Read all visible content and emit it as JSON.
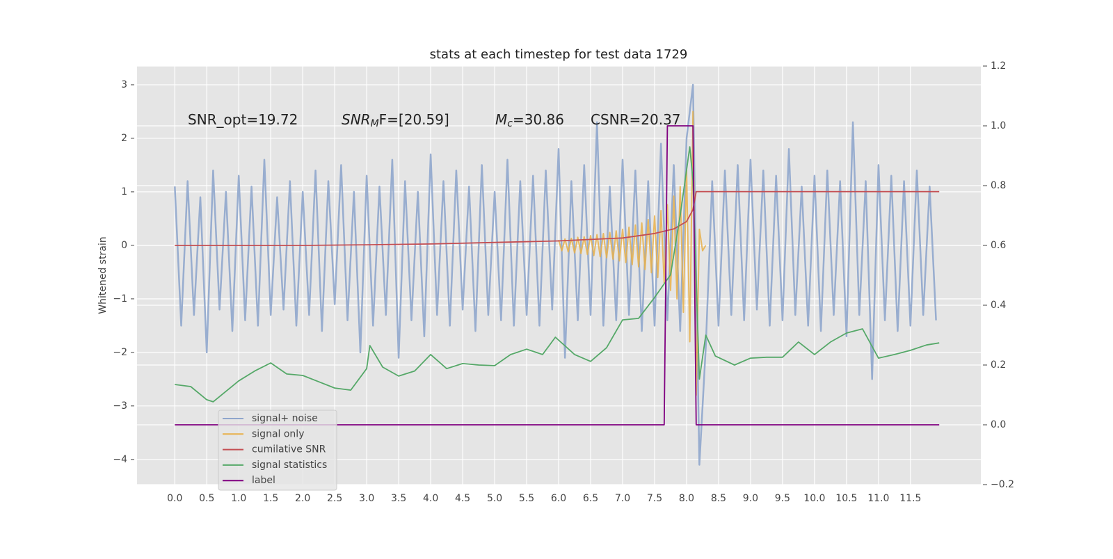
{
  "chart_data": {
    "type": "line",
    "title": "stats at each timestep for test data 1729",
    "ylabel": "Whitened strain",
    "annotations": [
      [
        "SNR_opt=19.72"
      ],
      [
        "SNR",
        "M",
        "F=[20.59]"
      ],
      [
        "M",
        "c",
        "=30.86"
      ],
      [
        "CSNR=20.37"
      ]
    ],
    "xlim": [
      -0.59,
      12.6
    ],
    "ylim": [
      -4.47,
      3.35
    ],
    "y2lim": [
      -0.2,
      1.2
    ],
    "xticks": [
      {
        "value": 0,
        "label": "0.0"
      },
      0.5,
      {
        "value": 1,
        "label": "1.0"
      },
      1.5,
      {
        "value": 2,
        "label": "2.0"
      },
      2.5,
      {
        "value": 3,
        "label": "3.0"
      },
      3.5,
      {
        "value": 4,
        "label": "4.0"
      },
      4.5,
      {
        "value": 5,
        "label": "5.0"
      },
      5.5,
      {
        "value": 6,
        "label": "6.0"
      },
      6.5,
      {
        "value": 7,
        "label": "7.0"
      },
      7.5,
      {
        "value": 8,
        "label": "8.0"
      },
      8.5,
      {
        "value": 9,
        "label": "9.0"
      },
      9.5,
      {
        "value": 10,
        "label": "10.0"
      },
      10.5,
      {
        "value": 11,
        "label": "11.0"
      },
      11.5
    ],
    "yticks": [
      {
        "value": -4,
        "label": "−4"
      },
      {
        "value": -3,
        "label": "−3"
      },
      {
        "value": -2,
        "label": "−2"
      },
      {
        "value": -1,
        "label": "−1"
      },
      0,
      1,
      2,
      3
    ],
    "y2ticks": [
      {
        "value": -0.2,
        "label": "−0.2"
      },
      {
        "value": 0,
        "label": "0.0"
      },
      0.2,
      0.4,
      0.6,
      0.8,
      {
        "value": 1,
        "label": "1.0"
      },
      1.2
    ],
    "grid": true,
    "series": [
      {
        "name": "signal+ noise",
        "color": "#8fa6cc",
        "x": [
          0,
          0.1,
          0.2,
          0.3,
          0.4,
          0.5,
          0.6,
          0.7,
          0.8,
          0.9,
          1,
          1.1,
          1.2,
          1.3,
          1.4,
          1.5,
          1.6,
          1.7,
          1.8,
          1.9,
          2,
          2.1,
          2.2,
          2.3,
          2.4,
          2.5,
          2.6,
          2.7,
          2.8,
          2.9,
          3,
          3.1,
          3.2,
          3.3,
          3.4,
          3.5,
          3.6,
          3.7,
          3.8,
          3.9,
          4,
          4.1,
          4.2,
          4.3,
          4.4,
          4.5,
          4.6,
          4.7,
          4.8,
          4.9,
          5,
          5.1,
          5.2,
          5.3,
          5.4,
          5.5,
          5.6,
          5.7,
          5.8,
          5.9,
          6,
          6.1,
          6.2,
          6.3,
          6.4,
          6.5,
          6.6,
          6.7,
          6.8,
          6.9,
          7,
          7.1,
          7.2,
          7.3,
          7.4,
          7.5,
          7.6,
          7.7,
          7.8,
          7.9,
          8,
          8.1,
          8.2,
          8.3,
          8.4,
          8.5,
          8.6,
          8.7,
          8.8,
          8.9,
          9,
          9.1,
          9.2,
          9.3,
          9.4,
          9.5,
          9.6,
          9.7,
          9.8,
          9.9,
          10,
          10.1,
          10.2,
          10.3,
          10.4,
          10.5,
          10.6,
          10.7,
          10.8,
          10.9,
          11,
          11.1,
          11.2,
          11.3,
          11.4,
          11.5,
          11.6,
          11.7,
          11.8,
          11.9
        ],
        "values": [
          1.1,
          -1.5,
          1.2,
          -1.3,
          0.9,
          -2.0,
          1.4,
          -1.2,
          1.0,
          -1.6,
          1.3,
          -1.4,
          1.1,
          -1.5,
          1.6,
          -1.3,
          0.9,
          -1.2,
          1.2,
          -1.5,
          1.0,
          -1.3,
          1.4,
          -1.6,
          1.2,
          -1.1,
          1.5,
          -1.4,
          1.0,
          -2.0,
          1.3,
          -1.5,
          1.1,
          -1.3,
          1.6,
          -2.1,
          1.2,
          -1.4,
          1.0,
          -1.7,
          1.7,
          -1.3,
          1.2,
          -1.5,
          1.4,
          -1.2,
          1.1,
          -1.6,
          1.5,
          -1.3,
          1.0,
          -1.4,
          1.6,
          -1.5,
          1.2,
          -1.3,
          1.3,
          -1.5,
          1.4,
          -1.2,
          1.8,
          -2.1,
          1.2,
          -1.4,
          1.5,
          -1.3,
          2.3,
          -1.5,
          1.1,
          -1.4,
          1.6,
          -1.3,
          1.4,
          -1.6,
          1.2,
          -1.5,
          1.9,
          -1.4,
          1.5,
          -1.6,
          2.0,
          3.0,
          -4.1,
          -1.9,
          1.2,
          -1.5,
          1.4,
          -1.3,
          1.5,
          -1.4,
          1.6,
          -1.2,
          1.4,
          -1.5,
          1.3,
          -1.4,
          1.8,
          -1.3,
          1.1,
          -1.5,
          1.3,
          -1.6,
          1.4,
          -1.3,
          1.2,
          -1.7,
          2.3,
          -1.3,
          1.2,
          -2.5,
          1.5,
          -1.4,
          1.3,
          -1.6,
          1.2,
          -1.5,
          1.4,
          -1.3,
          1.1,
          -1.4
        ]
      },
      {
        "name": "signal only",
        "color": "#e8b04a",
        "x": [
          6,
          6.05,
          6.1,
          6.15,
          6.2,
          6.25,
          6.3,
          6.35,
          6.4,
          6.45,
          6.5,
          6.55,
          6.6,
          6.65,
          6.7,
          6.75,
          6.8,
          6.85,
          6.9,
          6.95,
          7,
          7.05,
          7.1,
          7.15,
          7.2,
          7.25,
          7.3,
          7.35,
          7.4,
          7.45,
          7.5,
          7.55,
          7.6,
          7.65,
          7.7,
          7.75,
          7.8,
          7.85,
          7.9,
          7.95,
          8,
          8.05,
          8.1,
          8.15,
          8.2,
          8.25,
          8.3
        ],
        "values": [
          0.1,
          -0.1,
          0.12,
          -0.12,
          0.13,
          -0.14,
          0.15,
          -0.15,
          0.16,
          -0.17,
          0.18,
          -0.19,
          0.2,
          -0.21,
          0.22,
          -0.23,
          0.24,
          -0.26,
          0.27,
          -0.29,
          0.3,
          -0.32,
          0.34,
          -0.36,
          0.38,
          -0.4,
          0.42,
          -0.45,
          0.48,
          -0.51,
          0.55,
          -0.6,
          0.65,
          -0.7,
          0.76,
          -0.84,
          0.92,
          -1.0,
          1.1,
          -1.25,
          1.4,
          -1.8,
          2.5,
          -2.8,
          0.3,
          -0.1,
          0
        ]
      },
      {
        "name": "cumilative SNR",
        "color": "#c44e52",
        "axis": "y2",
        "x": [
          0,
          1,
          2,
          3,
          4,
          5,
          6,
          6.5,
          7,
          7.5,
          7.8,
          8,
          8.1,
          8.15,
          8.2,
          9,
          10,
          11,
          11.95
        ],
        "values": [
          0.6,
          0.6,
          0.6,
          0.602,
          0.605,
          0.61,
          0.615,
          0.62,
          0.625,
          0.64,
          0.655,
          0.68,
          0.72,
          0.78,
          0.78,
          0.78,
          0.78,
          0.78,
          0.78
        ]
      },
      {
        "name": "signal statistics",
        "color": "#55a868",
        "axis": "y2",
        "x": [
          0,
          0.25,
          0.5,
          0.6,
          1,
          1.25,
          1.5,
          1.75,
          2,
          2.25,
          2.5,
          2.75,
          3,
          3.05,
          3.25,
          3.5,
          3.75,
          4,
          4.25,
          4.5,
          4.75,
          5,
          5.25,
          5.5,
          5.75,
          5.95,
          6.25,
          6.5,
          6.75,
          7,
          7.25,
          7.5,
          7.75,
          7.9,
          8.05,
          8.1,
          8.2,
          8.3,
          8.45,
          8.75,
          9,
          9.25,
          9.5,
          9.75,
          10,
          10.25,
          10.5,
          10.75,
          11,
          11.25,
          11.5,
          11.75,
          11.95
        ],
        "values": [
          0.135,
          0.128,
          0.084,
          0.077,
          0.147,
          0.18,
          0.207,
          0.17,
          0.165,
          0.144,
          0.123,
          0.116,
          0.188,
          0.265,
          0.193,
          0.163,
          0.18,
          0.235,
          0.188,
          0.205,
          0.2,
          0.198,
          0.235,
          0.253,
          0.235,
          0.293,
          0.235,
          0.212,
          0.258,
          0.351,
          0.356,
          0.426,
          0.502,
          0.7,
          0.93,
          0.816,
          0.153,
          0.3,
          0.23,
          0.2,
          0.223,
          0.226,
          0.226,
          0.277,
          0.235,
          0.277,
          0.307,
          0.321,
          0.223,
          0.235,
          0.249,
          0.267,
          0.274
        ]
      },
      {
        "name": "label",
        "color": "#800080",
        "axis": "y2",
        "x": [
          0,
          7.65,
          7.7,
          8.1,
          8.15,
          11.95
        ],
        "values": [
          0,
          0,
          1,
          1,
          0,
          0
        ]
      }
    ]
  }
}
